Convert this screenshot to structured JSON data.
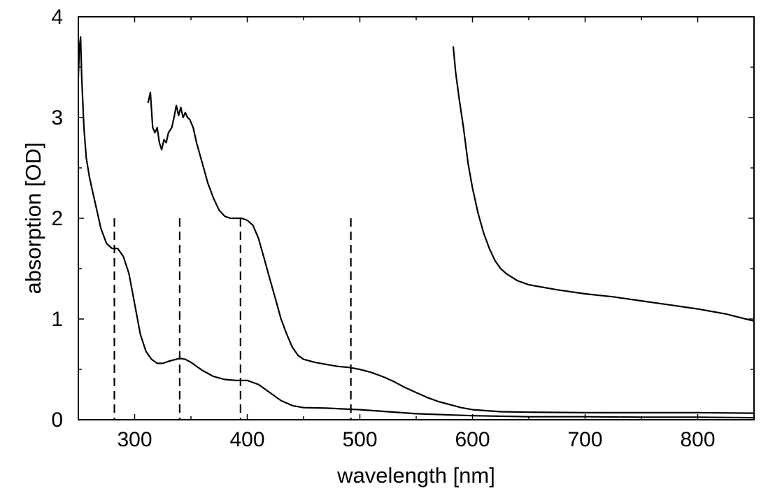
{
  "chart_data": {
    "type": "line",
    "title": "",
    "xlabel": "wavelength [nm]",
    "ylabel": "absorption [OD]",
    "xlim": [
      250,
      850
    ],
    "ylim": [
      0,
      4
    ],
    "x_ticks": [
      300,
      400,
      500,
      600,
      700,
      800
    ],
    "y_ticks": [
      0,
      1,
      2,
      3,
      4
    ],
    "grid": false,
    "legend": "none",
    "series": [
      {
        "points": [
          [
            250,
            3.4
          ],
          [
            251,
            3.7
          ],
          [
            252,
            3.8
          ],
          [
            253,
            3.4
          ],
          [
            255,
            2.9
          ],
          [
            257,
            2.6
          ],
          [
            260,
            2.4
          ],
          [
            263,
            2.25
          ],
          [
            267,
            2.05
          ],
          [
            270,
            1.9
          ],
          [
            275,
            1.75
          ],
          [
            280,
            1.7
          ],
          [
            285,
            1.7
          ],
          [
            290,
            1.62
          ],
          [
            295,
            1.45
          ],
          [
            300,
            1.15
          ],
          [
            305,
            0.85
          ],
          [
            310,
            0.68
          ],
          [
            315,
            0.6
          ],
          [
            320,
            0.56
          ],
          [
            325,
            0.56
          ],
          [
            330,
            0.58
          ],
          [
            340,
            0.61
          ],
          [
            345,
            0.6
          ],
          [
            350,
            0.57
          ],
          [
            360,
            0.49
          ],
          [
            370,
            0.43
          ],
          [
            380,
            0.4
          ],
          [
            390,
            0.39
          ],
          [
            400,
            0.39
          ],
          [
            410,
            0.35
          ],
          [
            420,
            0.27
          ],
          [
            430,
            0.19
          ],
          [
            440,
            0.14
          ],
          [
            450,
            0.12
          ],
          [
            470,
            0.115
          ],
          [
            500,
            0.1
          ],
          [
            550,
            0.06
          ],
          [
            600,
            0.04
          ],
          [
            650,
            0.03
          ],
          [
            700,
            0.03
          ],
          [
            750,
            0.025
          ],
          [
            800,
            0.025
          ],
          [
            850,
            0.02
          ]
        ]
      },
      {
        "points": [
          [
            312,
            3.15
          ],
          [
            314,
            3.25
          ],
          [
            316,
            2.9
          ],
          [
            318,
            2.85
          ],
          [
            320,
            2.9
          ],
          [
            322,
            2.75
          ],
          [
            324,
            2.68
          ],
          [
            326,
            2.78
          ],
          [
            328,
            2.75
          ],
          [
            330,
            2.85
          ],
          [
            333,
            2.9
          ],
          [
            335,
            3.0
          ],
          [
            337,
            3.12
          ],
          [
            339,
            3.02
          ],
          [
            341,
            3.1
          ],
          [
            343,
            3.0
          ],
          [
            345,
            3.05
          ],
          [
            347,
            3.0
          ],
          [
            349,
            2.98
          ],
          [
            352,
            2.9
          ],
          [
            355,
            2.75
          ],
          [
            360,
            2.55
          ],
          [
            365,
            2.35
          ],
          [
            370,
            2.2
          ],
          [
            375,
            2.08
          ],
          [
            380,
            2.02
          ],
          [
            385,
            2.0
          ],
          [
            390,
            2.0
          ],
          [
            395,
            2.0
          ],
          [
            400,
            1.98
          ],
          [
            405,
            1.93
          ],
          [
            410,
            1.8
          ],
          [
            415,
            1.6
          ],
          [
            420,
            1.4
          ],
          [
            425,
            1.2
          ],
          [
            430,
            1.0
          ],
          [
            435,
            0.85
          ],
          [
            440,
            0.72
          ],
          [
            445,
            0.64
          ],
          [
            450,
            0.6
          ],
          [
            460,
            0.57
          ],
          [
            470,
            0.55
          ],
          [
            480,
            0.53
          ],
          [
            490,
            0.52
          ],
          [
            500,
            0.5
          ],
          [
            510,
            0.47
          ],
          [
            520,
            0.43
          ],
          [
            530,
            0.38
          ],
          [
            540,
            0.32
          ],
          [
            550,
            0.27
          ],
          [
            560,
            0.22
          ],
          [
            570,
            0.18
          ],
          [
            580,
            0.15
          ],
          [
            590,
            0.12
          ],
          [
            600,
            0.1
          ],
          [
            625,
            0.08
          ],
          [
            650,
            0.075
          ],
          [
            700,
            0.07
          ],
          [
            750,
            0.07
          ],
          [
            800,
            0.07
          ],
          [
            850,
            0.065
          ]
        ]
      },
      {
        "points": [
          [
            583,
            3.7
          ],
          [
            585,
            3.45
          ],
          [
            588,
            3.2
          ],
          [
            592,
            2.9
          ],
          [
            596,
            2.55
          ],
          [
            600,
            2.3
          ],
          [
            605,
            2.05
          ],
          [
            610,
            1.85
          ],
          [
            615,
            1.7
          ],
          [
            620,
            1.58
          ],
          [
            625,
            1.5
          ],
          [
            630,
            1.45
          ],
          [
            640,
            1.38
          ],
          [
            650,
            1.34
          ],
          [
            675,
            1.29
          ],
          [
            700,
            1.25
          ],
          [
            725,
            1.22
          ],
          [
            750,
            1.18
          ],
          [
            775,
            1.14
          ],
          [
            800,
            1.1
          ],
          [
            825,
            1.05
          ],
          [
            850,
            0.98
          ]
        ]
      }
    ],
    "markers": [
      {
        "x": 282,
        "y_top": 2.0
      },
      {
        "x": 340,
        "y_top": 2.0
      },
      {
        "x": 394,
        "y_top": 2.0
      },
      {
        "x": 492,
        "y_top": 2.0
      }
    ]
  }
}
